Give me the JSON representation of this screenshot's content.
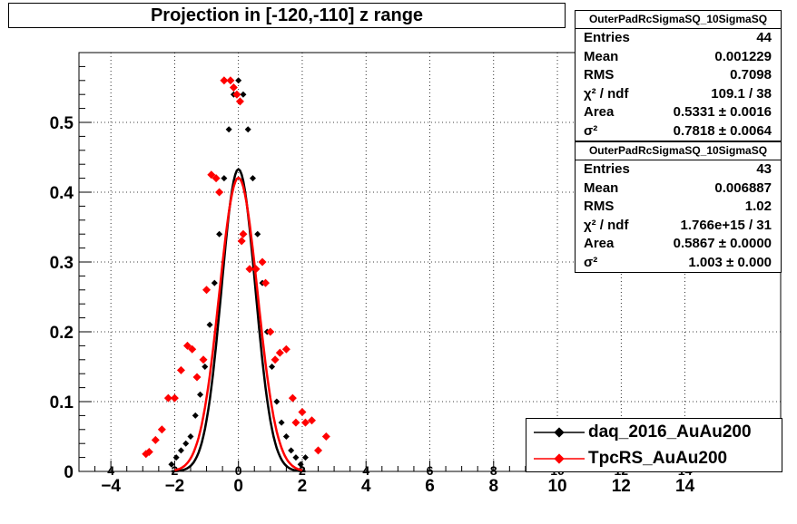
{
  "title": "Projection in [-120,-110] z range",
  "stats_boxes": [
    {
      "name": "OuterPadRcSigmaSQ_10SigmaSQ",
      "rows": [
        {
          "label": "Entries",
          "value": "44"
        },
        {
          "label": "Mean",
          "value": "0.001229"
        },
        {
          "label": "RMS",
          "value": "0.7098"
        },
        {
          "label": "χ² / ndf",
          "value": "109.1 / 38"
        },
        {
          "label": "Area",
          "value": "0.5331 ± 0.0016"
        },
        {
          "label": "σ²",
          "value": "0.7818 ± 0.0064"
        }
      ]
    },
    {
      "name": "OuterPadRcSigmaSQ_10SigmaSQ",
      "rows": [
        {
          "label": "Entries",
          "value": "43"
        },
        {
          "label": "Mean",
          "value": "0.006887"
        },
        {
          "label": "RMS",
          "value": "1.02"
        },
        {
          "label": "χ² / ndf",
          "value": "1.766e+15 / 31"
        },
        {
          "label": "Area",
          "value": "0.5867 ± 0.0000"
        },
        {
          "label": "σ²",
          "value": "1.003 ± 0.000"
        }
      ]
    }
  ],
  "legend": [
    {
      "label": "daq_2016_AuAu200",
      "color": "#000000"
    },
    {
      "label": "TpcRS_AuAu200",
      "color": "#ff0000"
    }
  ],
  "chart_data": {
    "type": "scatter",
    "title": "Projection in [-120,-110] z range",
    "xlabel": "",
    "ylabel": "",
    "xlim": [
      -5,
      17
    ],
    "ylim": [
      0,
      0.6
    ],
    "x_ticks": [
      "−4",
      "−2",
      "0",
      "2",
      "4",
      "6",
      "8",
      "10",
      "12",
      "14"
    ],
    "x_ticks_inner": [
      "4",
      "2",
      "0",
      "2",
      "4",
      "6",
      "8",
      "10",
      "12",
      "14"
    ],
    "y_ticks": [
      "0",
      "0.1",
      "0.2",
      "0.3",
      "0.4",
      "0.5"
    ],
    "grid": true,
    "legend_position": "bottom-right",
    "series": [
      {
        "name": "daq_2016_AuAu200",
        "color": "#000000",
        "fit_sigma2": 0.7818,
        "fit_area": 0.5331,
        "x": [
          -2.1,
          -1.95,
          -1.8,
          -1.65,
          -1.5,
          -1.35,
          -1.2,
          -1.05,
          -0.9,
          -0.75,
          -0.6,
          -0.45,
          -0.3,
          -0.15,
          0.0,
          0.15,
          0.3,
          0.45,
          0.6,
          0.75,
          0.9,
          1.05,
          1.2,
          1.35,
          1.5,
          1.65,
          1.8,
          1.95,
          2.1
        ],
        "y": [
          0.01,
          0.02,
          0.03,
          0.04,
          0.05,
          0.08,
          0.11,
          0.15,
          0.21,
          0.27,
          0.34,
          0.42,
          0.49,
          0.54,
          0.56,
          0.54,
          0.49,
          0.42,
          0.34,
          0.27,
          0.2,
          0.15,
          0.1,
          0.07,
          0.05,
          0.03,
          0.02,
          0.01,
          0.02
        ]
      },
      {
        "name": "TpcRS_AuAu200",
        "color": "#ff0000",
        "fit_sigma2": 1.003,
        "fit_area": 0.5867,
        "x": [
          -2.9,
          -2.8,
          -2.6,
          -2.4,
          -2.2,
          -2.0,
          -1.8,
          -1.6,
          -1.45,
          -1.3,
          -1.1,
          -1.0,
          -0.85,
          -0.7,
          -0.6,
          -0.45,
          -0.25,
          -0.15,
          -0.05,
          0.05,
          0.1,
          0.15,
          0.35,
          0.55,
          0.75,
          0.85,
          1.0,
          1.15,
          1.3,
          1.5,
          1.7,
          1.8,
          2.0,
          2.1,
          2.3,
          2.5,
          2.75
        ],
        "y": [
          0.025,
          0.028,
          0.045,
          0.06,
          0.105,
          0.105,
          0.145,
          0.18,
          0.175,
          0.135,
          0.16,
          0.26,
          0.425,
          0.42,
          0.4,
          0.56,
          0.56,
          0.55,
          0.54,
          0.53,
          0.33,
          0.34,
          0.29,
          0.29,
          0.3,
          0.27,
          0.2,
          0.16,
          0.17,
          0.175,
          0.105,
          0.07,
          0.085,
          0.07,
          0.073,
          0.03,
          0.05
        ]
      }
    ]
  }
}
